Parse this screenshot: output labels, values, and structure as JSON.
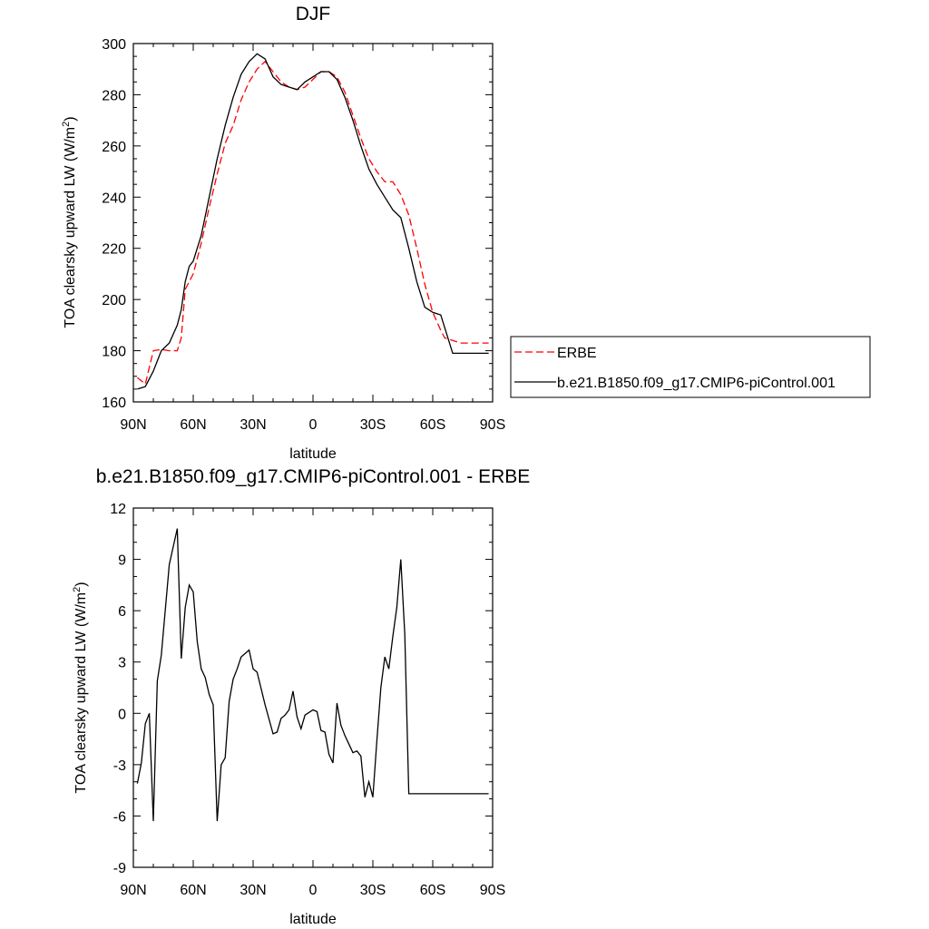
{
  "chart_data": [
    {
      "type": "line",
      "title": "DJF",
      "xlabel": "latitude",
      "ylabel": "TOA clearsky upward LW (W/m",
      "ylabel_sup": "2",
      "ylabel_close": ")",
      "xlim": [
        90,
        -90
      ],
      "ylim": [
        160,
        300
      ],
      "xticks": [
        {
          "value": 90,
          "label": "90N"
        },
        {
          "value": 60,
          "label": "60N"
        },
        {
          "value": 30,
          "label": "30N"
        },
        {
          "value": 0,
          "label": "0"
        },
        {
          "value": -30,
          "label": "30S"
        },
        {
          "value": -60,
          "label": "60S"
        },
        {
          "value": -90,
          "label": "90S"
        }
      ],
      "yticks": [
        160,
        180,
        200,
        220,
        240,
        260,
        280,
        300
      ],
      "legend": {
        "placement": "right"
      },
      "series": [
        {
          "name": "ERBE",
          "color": "#ff0000",
          "dash": "dashed",
          "x": [
            88,
            84,
            80,
            76,
            72,
            68,
            66,
            64,
            62,
            60,
            56,
            52,
            48,
            44,
            40,
            36,
            32,
            28,
            24,
            20,
            16,
            12,
            8,
            4,
            0,
            -4,
            -8,
            -12,
            -16,
            -20,
            -24,
            -28,
            -32,
            -36,
            -40,
            -44,
            -48,
            -52,
            -56,
            -60,
            -64,
            -66,
            -70,
            -74,
            -78,
            -82,
            -86,
            -88
          ],
          "y": [
            169.5,
            167,
            180,
            180.5,
            180,
            180,
            185,
            204,
            207,
            210,
            222,
            236,
            249,
            261,
            268,
            278,
            285,
            290,
            293,
            289,
            285,
            283,
            282,
            283,
            286,
            289,
            289,
            287,
            281,
            272,
            263,
            255,
            250,
            246,
            246,
            241,
            233,
            220,
            206,
            195,
            188,
            185,
            184,
            183,
            183,
            183,
            183,
            183
          ]
        },
        {
          "name": "b.e21.B1850.f09_g17.CMIP6-piControl.001",
          "color": "#000000",
          "dash": "solid",
          "x": [
            88,
            84,
            80,
            76,
            72,
            68,
            66,
            64,
            62,
            60,
            56,
            52,
            48,
            44,
            40,
            36,
            32,
            28,
            24,
            20,
            16,
            12,
            8,
            4,
            0,
            -4,
            -8,
            -12,
            -16,
            -20,
            -24,
            -28,
            -32,
            -36,
            -40,
            -44,
            -48,
            -52,
            -56,
            -60,
            -64,
            -66,
            -70,
            -74,
            -78,
            -82,
            -86,
            -88
          ],
          "y": [
            165,
            166,
            172,
            180,
            183,
            190,
            196,
            207,
            213,
            215,
            225,
            240,
            255,
            268,
            279,
            288,
            293,
            296,
            294,
            287,
            284,
            283,
            282,
            285,
            287,
            289,
            289,
            286,
            279,
            270,
            260,
            251,
            245,
            240,
            235,
            232,
            220,
            207,
            197,
            195,
            194,
            189,
            179,
            179,
            179,
            179,
            179,
            179
          ]
        }
      ]
    },
    {
      "type": "line",
      "title": "b.e21.B1850.f09_g17.CMIP6-piControl.001 - ERBE",
      "xlabel": "latitude",
      "ylabel": "TOA clearsky upward LW (W/m",
      "ylabel_sup": "2",
      "ylabel_close": ")",
      "xlim": [
        90,
        -90
      ],
      "ylim": [
        -9,
        12
      ],
      "xticks": [
        {
          "value": 90,
          "label": "90N"
        },
        {
          "value": 60,
          "label": "60N"
        },
        {
          "value": 30,
          "label": "30N"
        },
        {
          "value": 0,
          "label": "0"
        },
        {
          "value": -30,
          "label": "30S"
        },
        {
          "value": -60,
          "label": "60S"
        },
        {
          "value": -90,
          "label": "90S"
        }
      ],
      "yticks": [
        -9,
        -6,
        -3,
        0,
        3,
        6,
        9,
        12
      ],
      "series": [
        {
          "color": "#000000",
          "dash": "solid",
          "x": [
            88,
            86,
            84,
            82,
            80,
            78,
            76,
            72,
            68,
            66,
            64,
            62,
            60,
            58,
            56,
            54,
            52,
            50,
            48,
            46,
            44,
            42,
            40,
            38,
            36,
            32,
            30,
            28,
            24,
            20,
            18,
            16,
            14,
            12,
            10,
            8,
            6,
            4,
            0,
            -2,
            -4,
            -6,
            -8,
            -10,
            -12,
            -14,
            -16,
            -18,
            -20,
            -22,
            -24,
            -26,
            -28,
            -30,
            -32,
            -34,
            -36,
            -38,
            -40,
            -42,
            -44,
            -46,
            -48,
            -50,
            -52,
            -54,
            -56,
            -58,
            -60,
            -62,
            -64,
            -66,
            -68,
            -70,
            -72,
            -74,
            -76,
            -78,
            -80,
            -82,
            -84,
            -86,
            -88
          ],
          "y": [
            -4.1,
            -2.9,
            -0.6,
            0,
            -6.3,
            1.9,
            3.4,
            8.7,
            10.8,
            3.2,
            6.2,
            7.5,
            7.1,
            4.2,
            2.6,
            2.1,
            1.1,
            0.5,
            -6.3,
            -3.0,
            -2.6,
            0.7,
            2.0,
            2.6,
            3.3,
            3.7,
            2.6,
            2.4,
            0.5,
            -1.2,
            -1.1,
            -0.3,
            -0.1,
            0.2,
            1.3,
            -0.2,
            -0.9,
            -0.1,
            0.2,
            0.1,
            -1.0,
            -1.1,
            -2.4,
            -2.9,
            0.6,
            -0.7,
            -1.3,
            -1.8,
            -2.3,
            -2.2,
            -2.5,
            -4.9,
            -4.0,
            -4.9,
            -1.6,
            1.5,
            3.3,
            2.6,
            4.5,
            6.2,
            9.0,
            4.6,
            -4.7,
            -4.7,
            -4.7,
            -4.7,
            -4.7,
            -4.7,
            -4.7,
            -4.7,
            -4.7,
            -4.7,
            -4.7,
            -4.7,
            -4.7,
            -4.7,
            -4.7,
            -4.7,
            -4.7,
            -4.7,
            -4.7,
            -4.7,
            -4.7
          ]
        }
      ]
    }
  ]
}
